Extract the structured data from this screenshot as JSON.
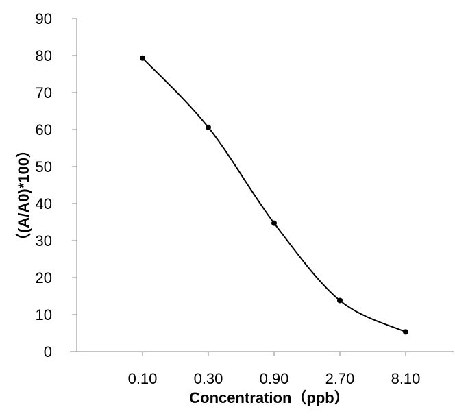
{
  "chart_data": {
    "type": "line",
    "categories": [
      "0.10",
      "0.30",
      "0.90",
      "2.70",
      "8.10"
    ],
    "series": [
      {
        "values": [
          79.3,
          60.6,
          34.7,
          13.8,
          5.3
        ]
      }
    ],
    "xlabel": "Concentration（ppb）",
    "ylabel": "（(A/A0)*100）",
    "ylim": [
      0,
      90
    ],
    "yticks": [
      "0",
      "10",
      "20",
      "30",
      "40",
      "50",
      "60",
      "70",
      "80",
      "90"
    ],
    "grid": false,
    "smooth": true,
    "line_color": "#000000",
    "marker_color": "#000000"
  }
}
